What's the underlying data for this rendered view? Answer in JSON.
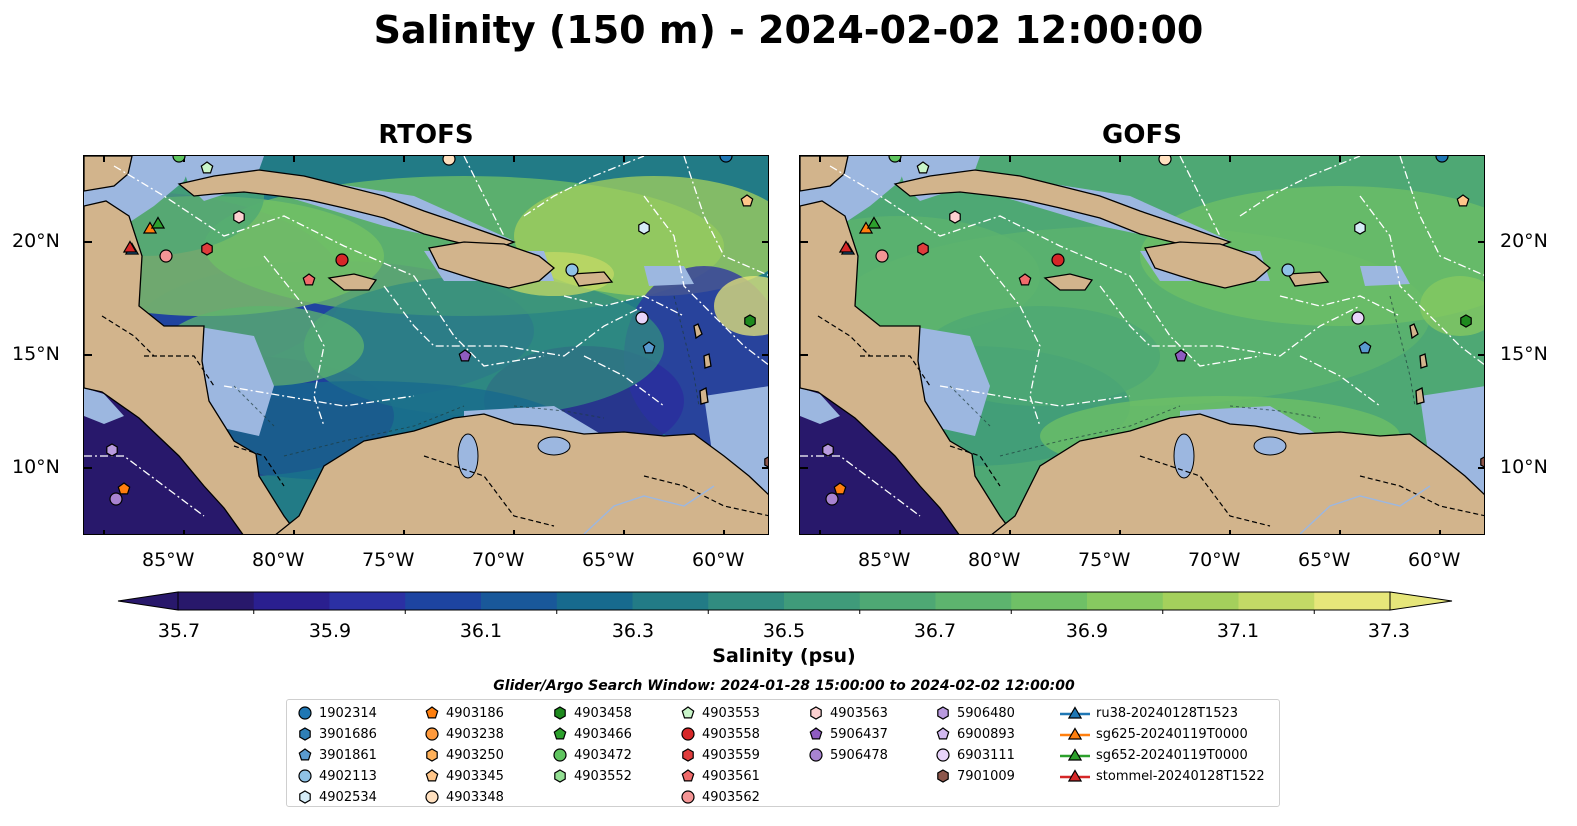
{
  "suptitle": "Salinity (150 m) - 2024-02-02 12:00:00",
  "panels": [
    {
      "title": "RTOFS"
    },
    {
      "title": "GOFS"
    }
  ],
  "lat_ticks": [
    "20°N",
    "15°N",
    "10°N"
  ],
  "lon_ticks": [
    "85°W",
    "80°W",
    "75°W",
    "70°W",
    "65°W",
    "60°W"
  ],
  "colorbar": {
    "label": "Salinity (psu)",
    "range": [
      35.6,
      37.4
    ],
    "step": 0.1,
    "extend": "both",
    "colors": [
      "#28186b",
      "#2a1f8f",
      "#2b30a3",
      "#1d44a1",
      "#19589a",
      "#176a8e",
      "#227b86",
      "#318c80",
      "#3f9b7a",
      "#4ea874",
      "#5db46e",
      "#6fc066",
      "#87c960",
      "#a4d05c",
      "#c3da66",
      "#e6e67a"
    ],
    "tick_labels": [
      "35.7",
      "35.9",
      "36.1",
      "36.3",
      "36.5",
      "36.7",
      "36.9",
      "37.1",
      "37.3"
    ]
  },
  "legend": {
    "title": "Glider/Argo Search Window: 2024-01-28 15:00:00 to 2024-02-02 12:00:00",
    "entries": [
      {
        "label": "1902314",
        "marker": "circle",
        "color": "#1f77b4"
      },
      {
        "label": "3901686",
        "marker": "hexagon",
        "color": "#2f7fb6"
      },
      {
        "label": "3901861",
        "marker": "pentagon",
        "color": "#5a9bd0"
      },
      {
        "label": "4902113",
        "marker": "circle",
        "color": "#8fc2e6"
      },
      {
        "label": "4902534",
        "marker": "hexagon",
        "color": "#d6ecf7"
      },
      {
        "label": "4903186",
        "marker": "pentagon",
        "color": "#ff7f0e"
      },
      {
        "label": "4903238",
        "marker": "circle",
        "color": "#ff9a3c"
      },
      {
        "label": "4903250",
        "marker": "hexagon",
        "color": "#ffb15a"
      },
      {
        "label": "4903345",
        "marker": "pentagon",
        "color": "#ffc68a"
      },
      {
        "label": "4903348",
        "marker": "circle",
        "color": "#ffe0bf"
      },
      {
        "label": "4903458",
        "marker": "hexagon",
        "color": "#1e8a1e"
      },
      {
        "label": "4903466",
        "marker": "pentagon",
        "color": "#2ca02c"
      },
      {
        "label": "4903472",
        "marker": "circle",
        "color": "#5fc45f"
      },
      {
        "label": "4903552",
        "marker": "hexagon",
        "color": "#93df93"
      },
      {
        "label": "4903553",
        "marker": "pentagon",
        "color": "#c9f5c9"
      },
      {
        "label": "4903558",
        "marker": "circle",
        "color": "#d62728"
      },
      {
        "label": "4903559",
        "marker": "hexagon",
        "color": "#e03c3c"
      },
      {
        "label": "4903561",
        "marker": "pentagon",
        "color": "#f06b6b"
      },
      {
        "label": "4903562",
        "marker": "circle",
        "color": "#f49595"
      },
      {
        "label": "4903563",
        "marker": "hexagon",
        "color": "#fcd0d0"
      },
      {
        "label": "5906437",
        "marker": "pentagon",
        "color": "#8e5cc0"
      },
      {
        "label": "5906478",
        "marker": "circle",
        "color": "#a883d0"
      },
      {
        "label": "5906480",
        "marker": "hexagon",
        "color": "#b99ade"
      },
      {
        "label": "6900893",
        "marker": "pentagon",
        "color": "#d1b8ef"
      },
      {
        "label": "6903111",
        "marker": "circle",
        "color": "#e8d4fa"
      },
      {
        "label": "7901009",
        "marker": "hexagon",
        "color": "#8c564b"
      },
      {
        "label": "ru38-20240128T1523",
        "marker": "triangle-line",
        "color": "#1f77b4"
      },
      {
        "label": "sg625-20240119T0000",
        "marker": "triangle-line",
        "color": "#ff7f0e"
      },
      {
        "label": "sg652-20240119T0000",
        "marker": "triangle-line",
        "color": "#2ca02c"
      },
      {
        "label": "stommel-20240128T1522",
        "marker": "triangle-line",
        "color": "#d62728"
      }
    ]
  },
  "colors": {
    "land": "#d2b48c",
    "shelf": "#9cb7e0",
    "deep_pacific": "#28186b"
  }
}
